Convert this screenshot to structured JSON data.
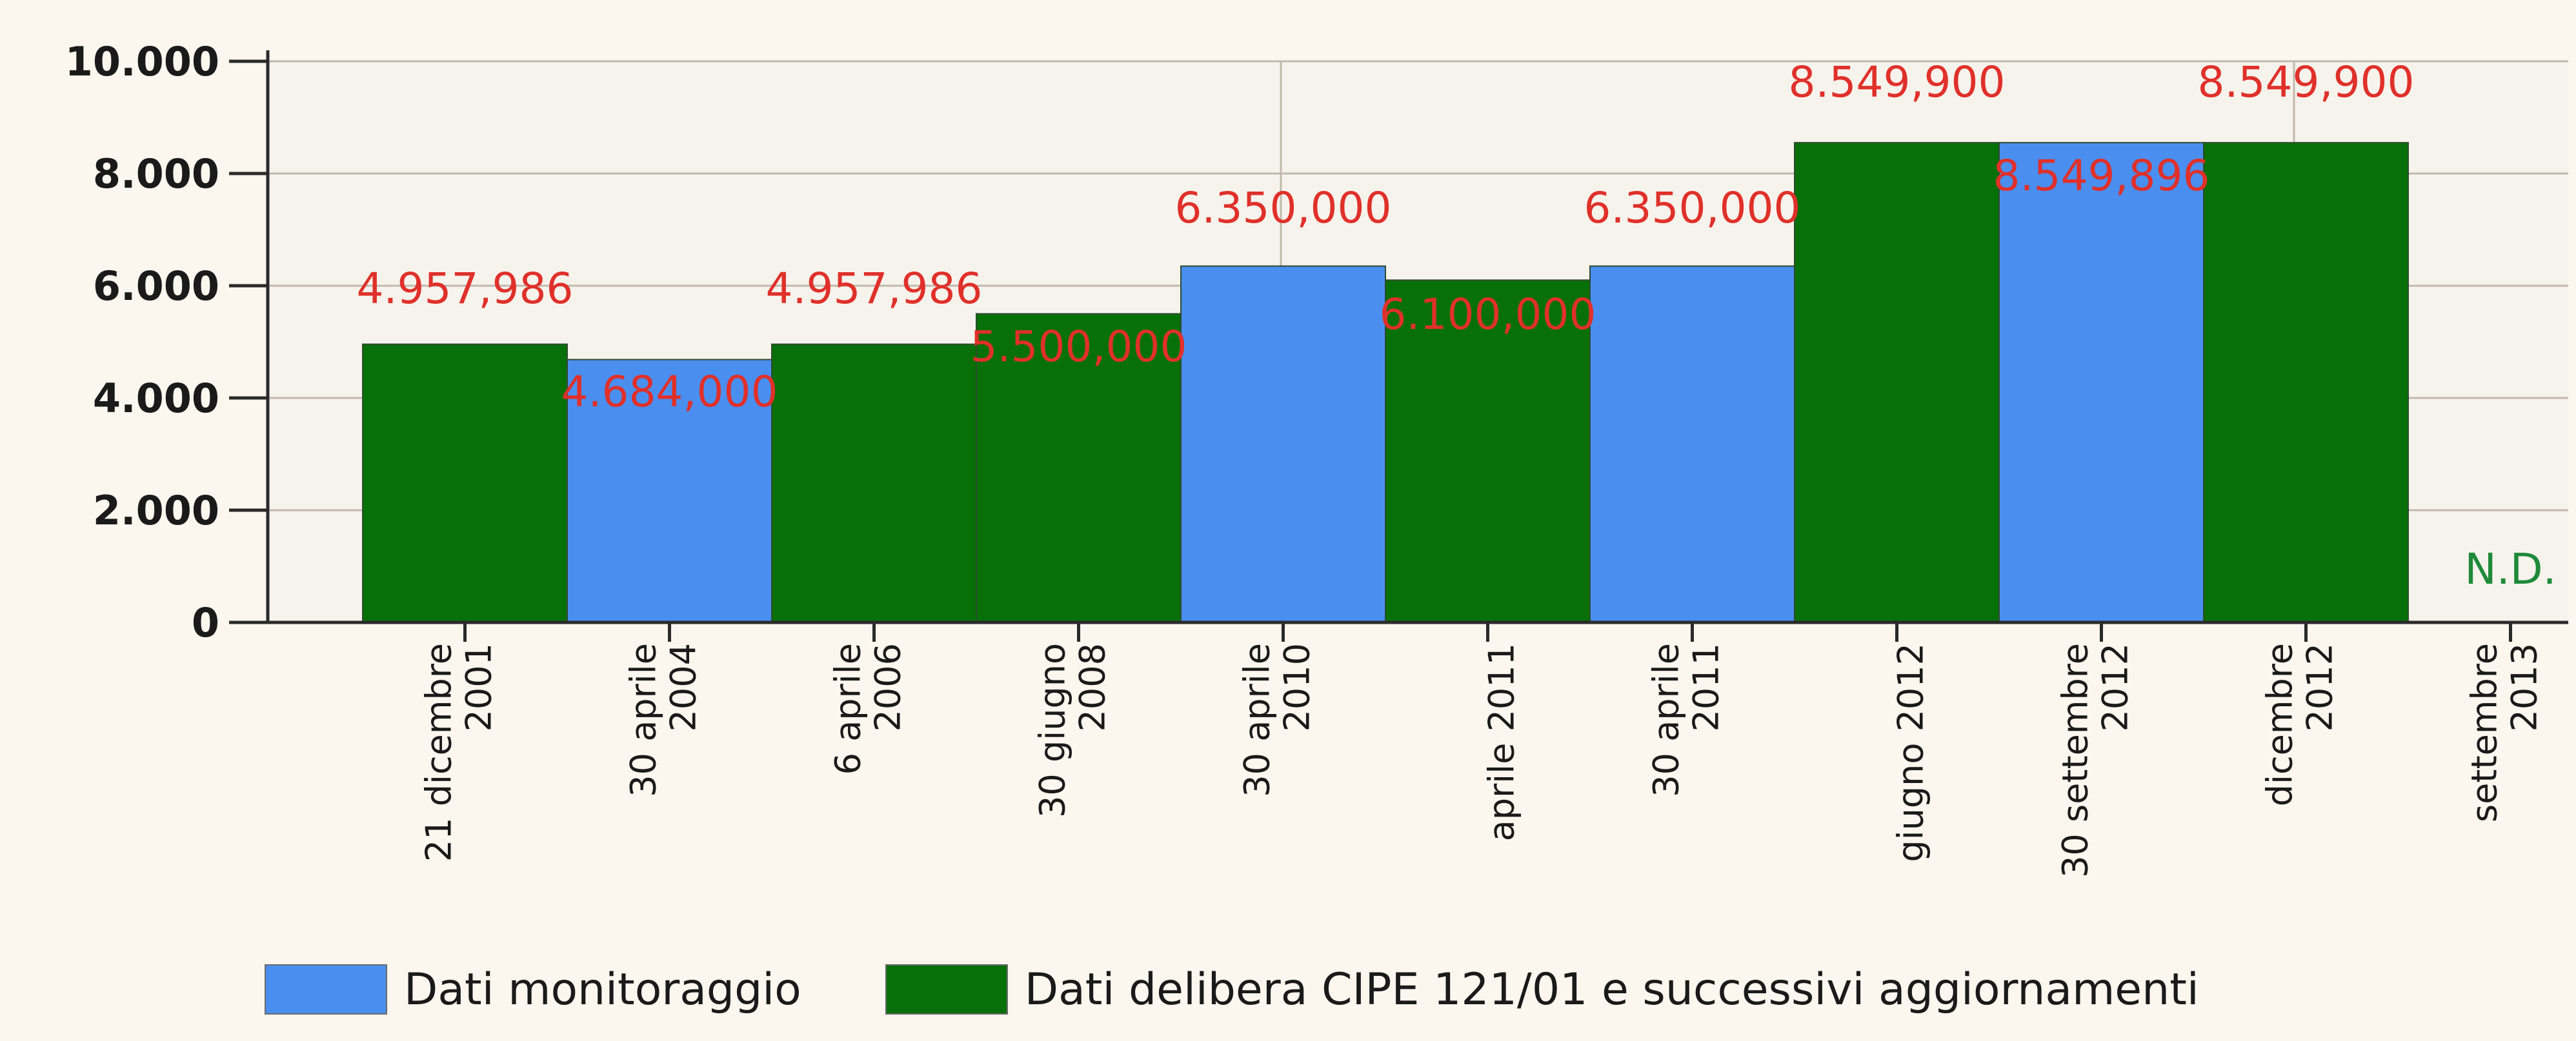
{
  "chart_data": {
    "type": "bar",
    "ylim": [
      0,
      10000
    ],
    "yticks": [
      0,
      2000,
      4000,
      6000,
      8000,
      10000
    ],
    "ytick_labels": [
      "0",
      "2.000",
      "4.000",
      "6.000",
      "8.000",
      "10.000"
    ],
    "grid": true,
    "legend_position": "bottom",
    "colors": {
      "monitoraggio": "#4a8ff0",
      "delibera": "#087008",
      "value_label": "#e0302a",
      "nd_label": "#1e8a3a",
      "grid": "#c0b9ae",
      "background": "#fbf6ee",
      "plot_background": "#f6f3ec"
    },
    "categories": [
      "21 dicembre\n2001",
      "30 aprile\n2004",
      "6 aprile\n2006",
      "30 giugno\n2008",
      "30 aprile\n2010",
      "aprile 2011",
      "30 aprile\n2011",
      "giugno 2012",
      "30 settembre\n2012",
      "dicembre\n2012",
      "settembre\n2013"
    ],
    "series": [
      {
        "name": "Dati monitoraggio",
        "key": "monitoraggio"
      },
      {
        "name": "Dati delibera CIPE 121/01 e successivi aggiornamenti",
        "key": "delibera"
      }
    ],
    "bars": [
      {
        "value": 4957.986,
        "label": "4.957,986",
        "series": "delibera"
      },
      {
        "value": 4684,
        "label": "4.684,000",
        "series": "monitoraggio"
      },
      {
        "value": 4957.986,
        "label": "4.957,986",
        "series": "delibera"
      },
      {
        "value": 5500,
        "label": "5.500,000",
        "series": "delibera"
      },
      {
        "value": 6350,
        "label": "6.350,000",
        "series": "monitoraggio"
      },
      {
        "value": 6100,
        "label": "6.100,000",
        "series": "delibera"
      },
      {
        "value": 6350,
        "label": "6.350,000",
        "series": "monitoraggio"
      },
      {
        "value": 8549.9,
        "label": "8.549,900",
        "series": "delibera"
      },
      {
        "value": 8549.896,
        "label": "8.549,896",
        "series": "monitoraggio"
      },
      {
        "value": 8549.9,
        "label": "8.549,900",
        "series": "delibera"
      },
      {
        "value": null,
        "label": "N.D.",
        "series": "delibera"
      }
    ]
  }
}
